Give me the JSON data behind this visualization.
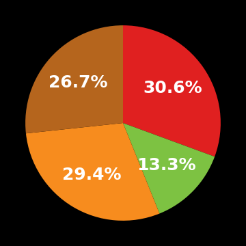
{
  "slices": [
    30.6,
    13.3,
    29.4,
    26.7
  ],
  "labels": [
    "30.6%",
    "13.3%",
    "29.4%",
    "26.7%"
  ],
  "colors": [
    "#e02020",
    "#7dc242",
    "#f78c1e",
    "#b5651d"
  ],
  "background_color": "#000000",
  "text_color": "#ffffff",
  "text_fontsize": 18,
  "startangle": 90,
  "label_r": 0.62
}
